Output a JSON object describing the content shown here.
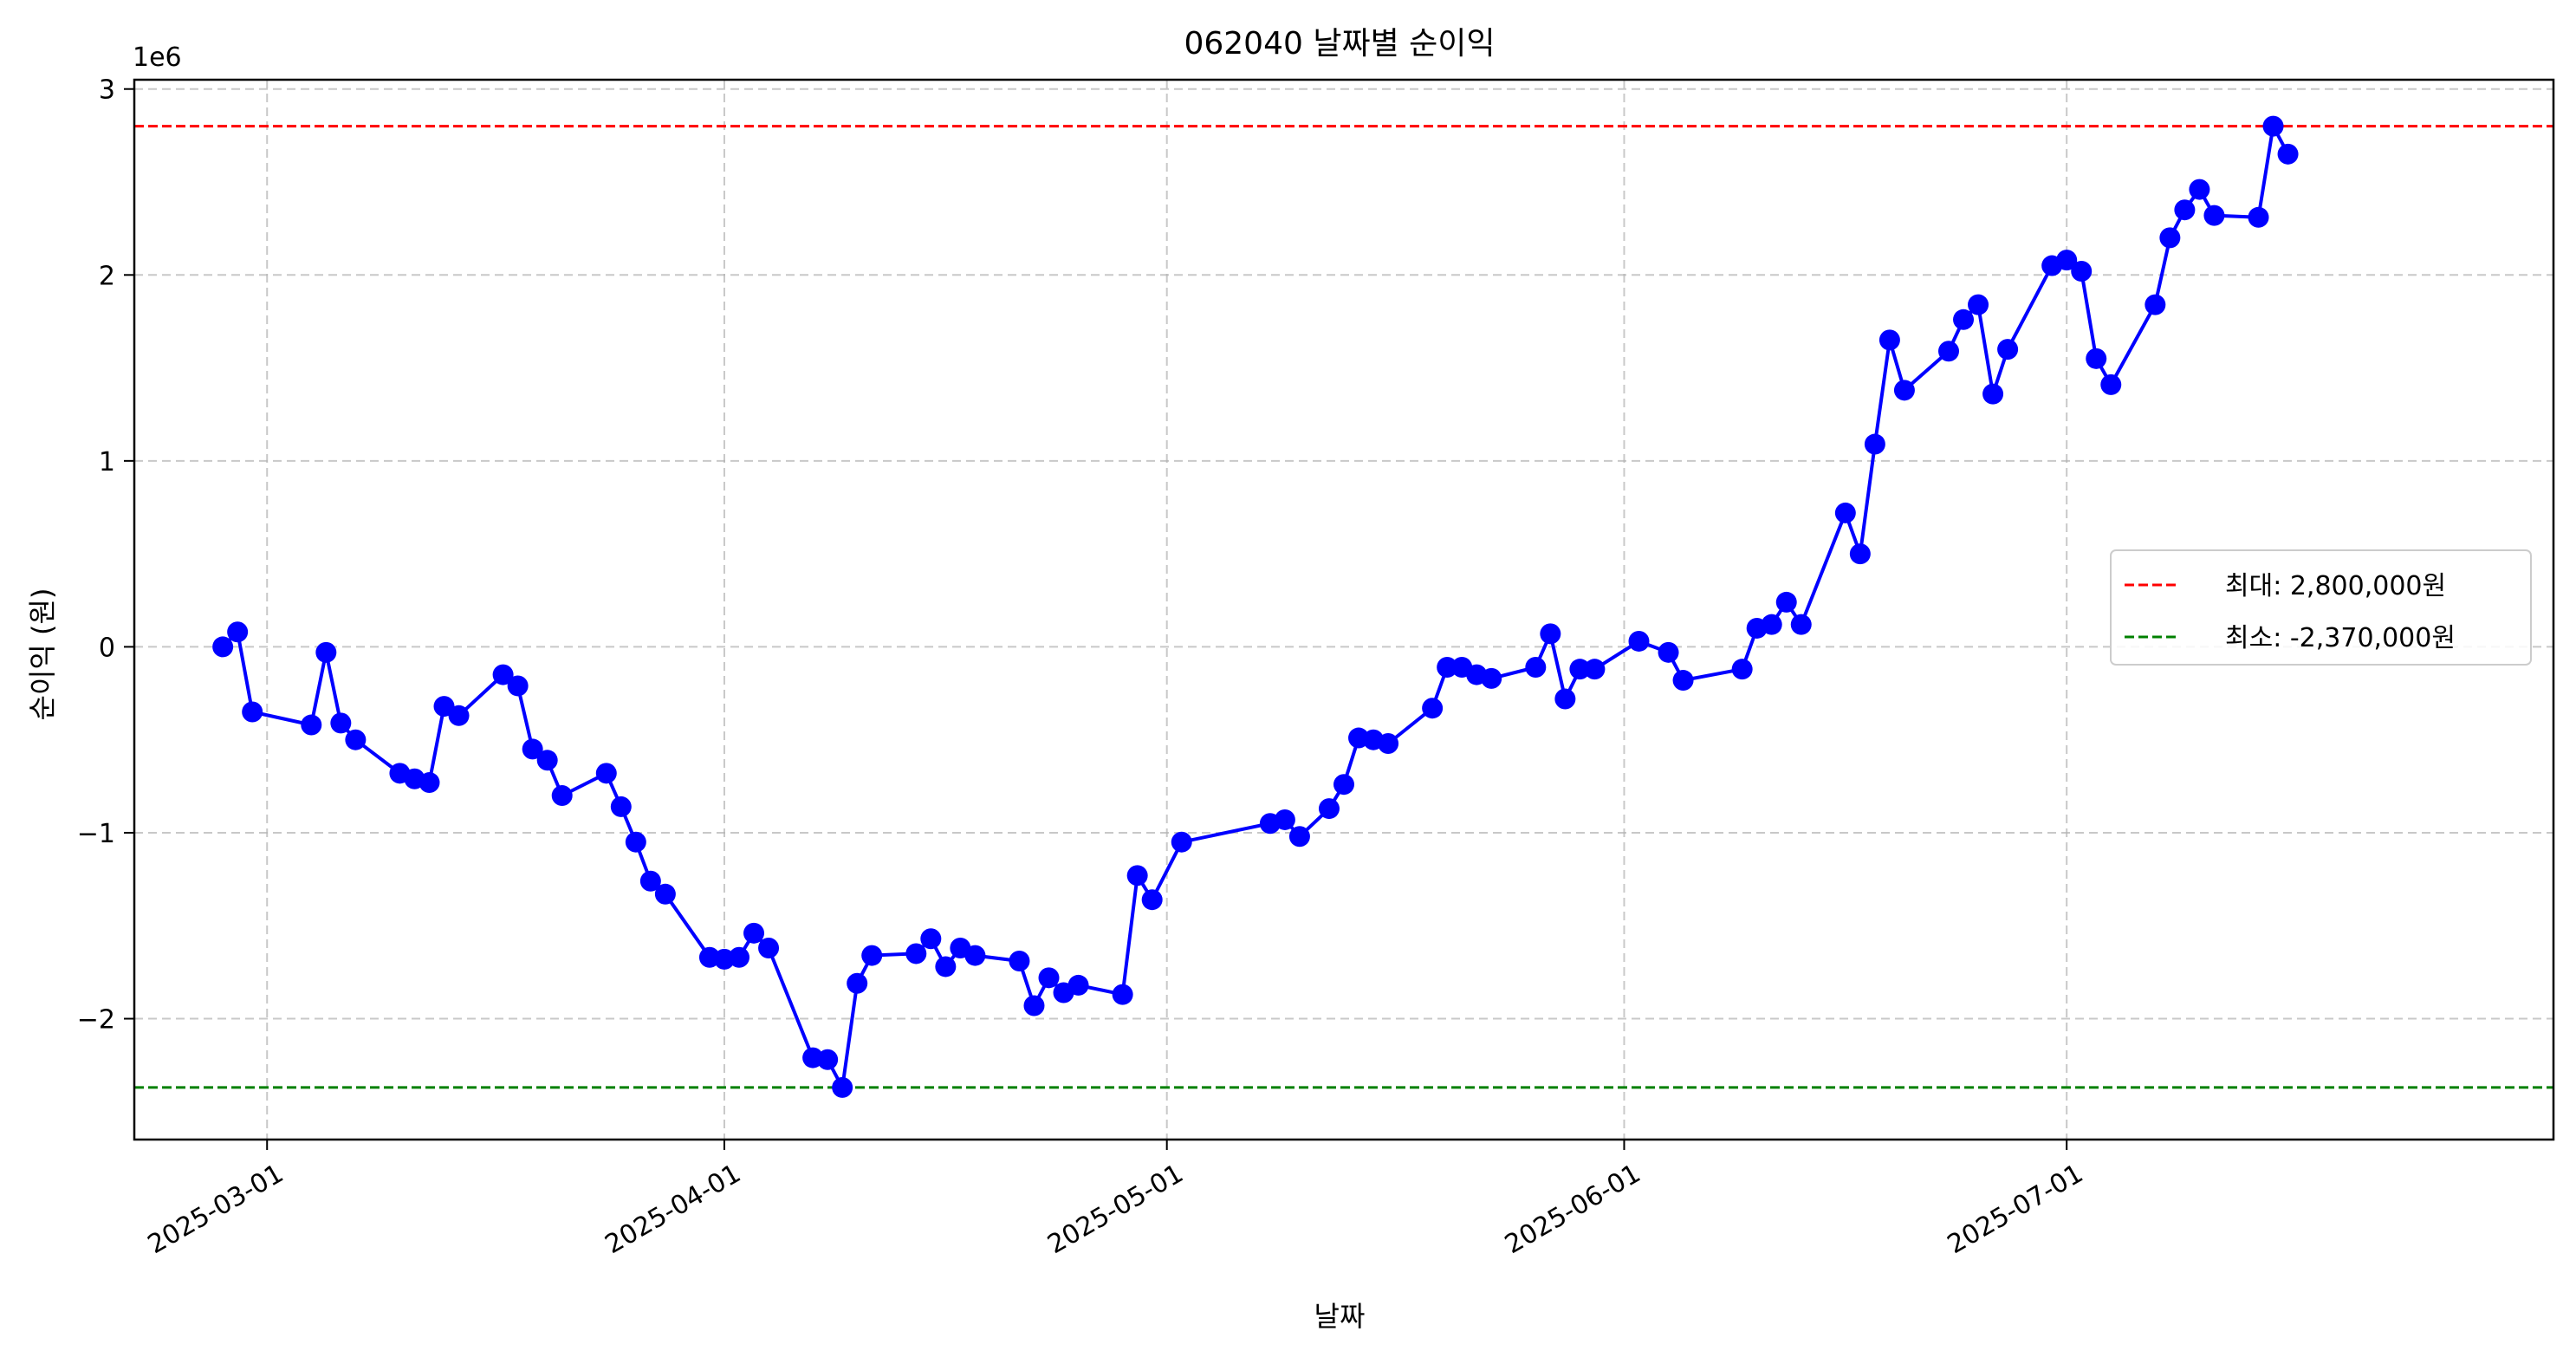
{
  "chart_data": {
    "type": "line",
    "title": "062040 날짜별 순이익",
    "xlabel": "날짜",
    "ylabel": "순이익 (원)",
    "y_offset_text": "1e6",
    "xlim": [
      "2025-02-20",
      "2025-08-03"
    ],
    "ylim": [
      -2.65,
      3.05
    ],
    "x_ticks": [
      "2025-03-01",
      "2025-04-01",
      "2025-05-01",
      "2025-06-01",
      "2025-07-01"
    ],
    "y_ticks": [
      -2,
      -1,
      0,
      1,
      2,
      3
    ],
    "y_tick_labels": [
      "−2",
      "−1",
      "0",
      "1",
      "2",
      "3"
    ],
    "grid": true,
    "legend_position": "right",
    "series": [
      {
        "color": "#0000ff",
        "marker": "circle",
        "x": [
          "2025-02-26",
          "2025-02-27",
          "2025-02-28",
          "2025-03-04",
          "2025-03-05",
          "2025-03-06",
          "2025-03-07",
          "2025-03-10",
          "2025-03-11",
          "2025-03-12",
          "2025-03-13",
          "2025-03-14",
          "2025-03-17",
          "2025-03-18",
          "2025-03-19",
          "2025-03-20",
          "2025-03-21",
          "2025-03-24",
          "2025-03-25",
          "2025-03-26",
          "2025-03-27",
          "2025-03-28",
          "2025-03-31",
          "2025-04-01",
          "2025-04-02",
          "2025-04-03",
          "2025-04-04",
          "2025-04-07",
          "2025-04-08",
          "2025-04-09",
          "2025-04-10",
          "2025-04-11",
          "2025-04-14",
          "2025-04-15",
          "2025-04-16",
          "2025-04-17",
          "2025-04-18",
          "2025-04-21",
          "2025-04-22",
          "2025-04-23",
          "2025-04-24",
          "2025-04-25",
          "2025-04-28",
          "2025-04-29",
          "2025-04-30",
          "2025-05-02",
          "2025-05-08",
          "2025-05-09",
          "2025-05-10",
          "2025-05-12",
          "2025-05-13",
          "2025-05-14",
          "2025-05-15",
          "2025-05-16",
          "2025-05-19",
          "2025-05-20",
          "2025-05-21",
          "2025-05-22",
          "2025-05-23",
          "2025-05-26",
          "2025-05-27",
          "2025-05-28",
          "2025-05-29",
          "2025-05-30",
          "2025-06-02",
          "2025-06-04",
          "2025-06-05",
          "2025-06-09",
          "2025-06-10",
          "2025-06-11",
          "2025-06-12",
          "2025-06-13",
          "2025-06-16",
          "2025-06-17",
          "2025-06-18",
          "2025-06-19",
          "2025-06-20",
          "2025-06-23",
          "2025-06-24",
          "2025-06-25",
          "2025-06-26",
          "2025-06-27",
          "2025-06-30",
          "2025-07-01",
          "2025-07-02",
          "2025-07-03",
          "2025-07-04",
          "2025-07-07",
          "2025-07-08",
          "2025-07-09",
          "2025-07-10",
          "2025-07-11",
          "2025-07-14",
          "2025-07-15",
          "2025-07-16"
        ],
        "y": [
          0.0,
          0.08,
          -0.35,
          -0.42,
          -0.03,
          -0.41,
          -0.5,
          -0.68,
          -0.71,
          -0.73,
          -0.32,
          -0.37,
          -0.15,
          -0.21,
          -0.55,
          -0.61,
          -0.8,
          -0.68,
          -0.86,
          -1.05,
          -1.26,
          -1.33,
          -1.67,
          -1.68,
          -1.67,
          -1.54,
          -1.62,
          -2.21,
          -2.22,
          -2.37,
          -1.81,
          -1.66,
          -1.65,
          -1.57,
          -1.72,
          -1.62,
          -1.66,
          -1.69,
          -1.93,
          -1.78,
          -1.86,
          -1.82,
          -1.87,
          -1.23,
          -1.36,
          -1.05,
          -0.95,
          -0.93,
          -1.02,
          -0.87,
          -0.74,
          -0.49,
          -0.5,
          -0.52,
          -0.33,
          -0.11,
          -0.11,
          -0.15,
          -0.17,
          -0.11,
          0.07,
          -0.28,
          -0.12,
          -0.12,
          0.03,
          -0.03,
          -0.18,
          -0.12,
          0.1,
          0.12,
          0.24,
          0.12,
          0.72,
          0.5,
          1.09,
          1.65,
          1.38,
          1.59,
          1.76,
          1.84,
          1.36,
          1.6,
          2.05,
          2.08,
          2.02,
          1.55,
          1.41,
          1.84,
          2.2,
          2.35,
          2.46,
          2.32,
          2.31,
          2.8,
          2.65
        ]
      }
    ],
    "reference_lines": [
      {
        "value": 2.8,
        "color": "#ff0000",
        "style": "dashed",
        "label": "최대: 2,800,000원"
      },
      {
        "value": -2.37,
        "color": "#008000",
        "style": "dashed",
        "label": "최소: -2,370,000원"
      }
    ]
  }
}
